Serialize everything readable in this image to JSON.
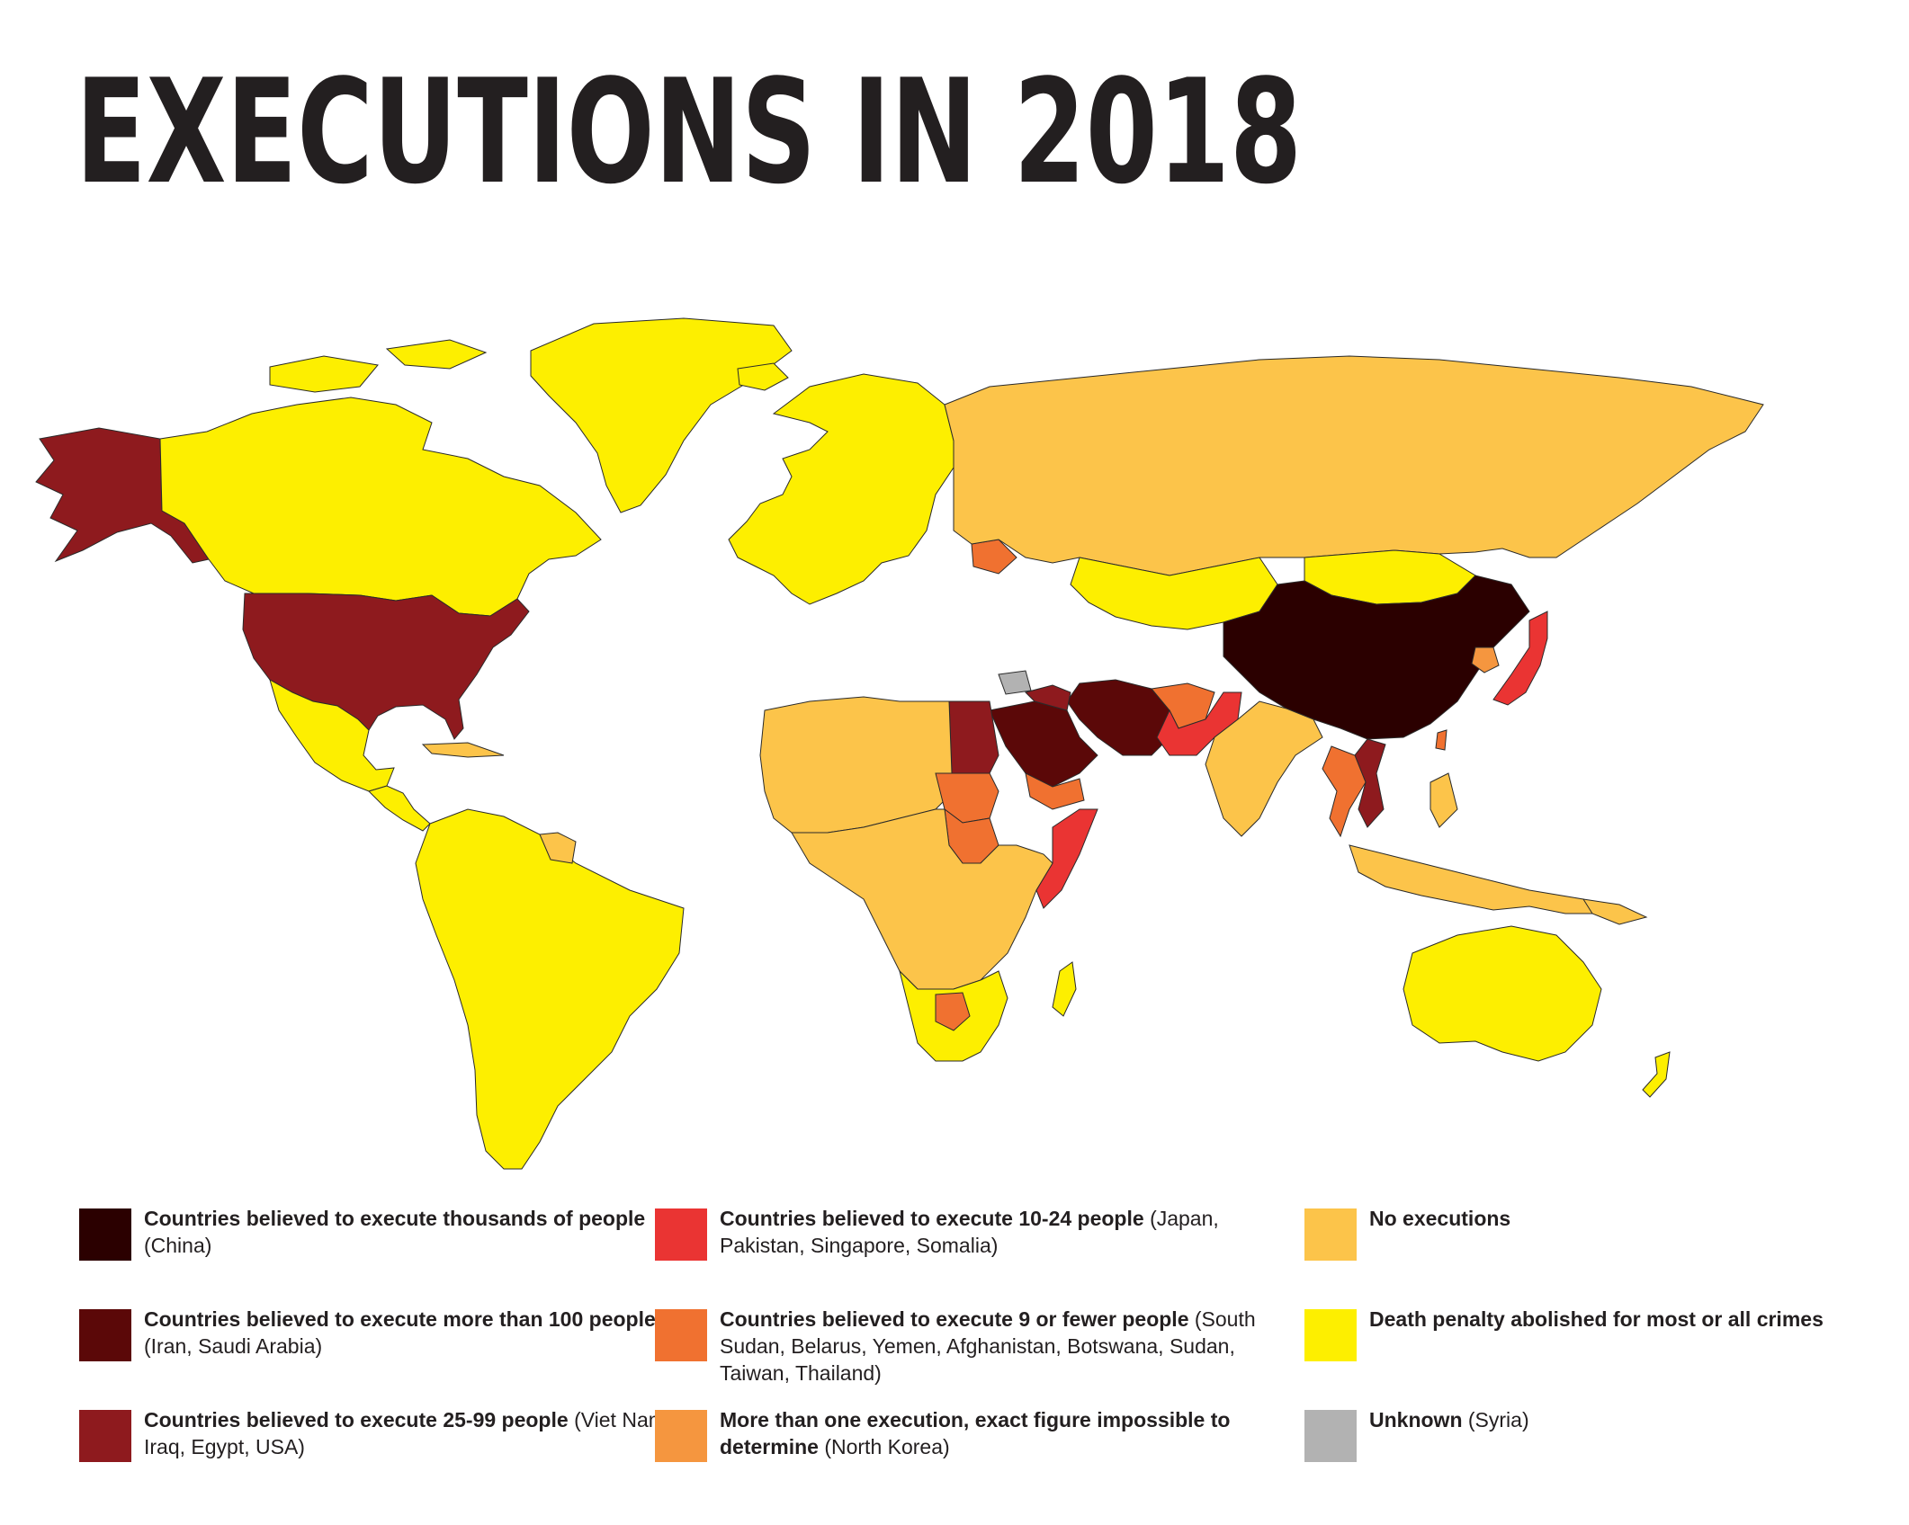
{
  "title": "EXECUTIONS IN 2018",
  "colors": {
    "thousands": "#2b0000",
    "over100": "#5b0808",
    "c25_99": "#8e1a1e",
    "c10_24": "#ea3433",
    "c9_fewer": "#f07130",
    "more_than_one": "#f5963f",
    "no_exec": "#fcc44a",
    "abolished": "#fdef00",
    "unknown": "#b2b2b2",
    "border": "#2a2a2a"
  },
  "legend": [
    {
      "bold": "Countries believed to execute thousands of people",
      "examples": "(China)",
      "color_key": "thousands"
    },
    {
      "bold": "Countries believed to execute more than 100 people",
      "examples": "(Iran, Saudi Arabia)",
      "color_key": "over100"
    },
    {
      "bold": "Countries believed to execute 25-99 people",
      "examples": "(Viet Nam, Iraq, Egypt, USA)",
      "color_key": "c25_99"
    },
    {
      "bold": "Countries believed to execute 10-24 people",
      "examples": "(Japan, Pakistan, Singapore, Somalia)",
      "color_key": "c10_24"
    },
    {
      "bold": "Countries believed to execute 9 or fewer people",
      "examples": "(South Sudan, Belarus, Yemen, Afghanistan, Botswana, Sudan, Taiwan, Thailand)",
      "color_key": "c9_fewer"
    },
    {
      "bold": "More than one execution, exact figure impossible to determine",
      "examples": "(North Korea)",
      "color_key": "more_than_one"
    },
    {
      "bold": "No executions",
      "examples": "",
      "color_key": "no_exec"
    },
    {
      "bold": "Death penalty abolished for most or all crimes",
      "examples": "",
      "color_key": "abolished"
    },
    {
      "bold": "Unknown",
      "examples": "(Syria)",
      "color_key": "unknown"
    }
  ],
  "regions": [
    {
      "name": "Alaska",
      "category": "c25_99"
    },
    {
      "name": "Canada",
      "category": "abolished"
    },
    {
      "name": "Greenland",
      "category": "abolished"
    },
    {
      "name": "USA",
      "category": "c25_99"
    },
    {
      "name": "Mexico",
      "category": "abolished"
    },
    {
      "name": "Cuba",
      "category": "no_exec"
    },
    {
      "name": "Central America",
      "category": "abolished"
    },
    {
      "name": "South America",
      "category": "abolished"
    },
    {
      "name": "Guyana",
      "category": "no_exec"
    },
    {
      "name": "Iceland",
      "category": "abolished"
    },
    {
      "name": "Europe",
      "category": "abolished"
    },
    {
      "name": "Belarus",
      "category": "c9_fewer"
    },
    {
      "name": "Russia",
      "category": "no_exec"
    },
    {
      "name": "Kazakhstan",
      "category": "abolished"
    },
    {
      "name": "Mongolia",
      "category": "abolished"
    },
    {
      "name": "China",
      "category": "thousands"
    },
    {
      "name": "North Korea",
      "category": "more_than_one"
    },
    {
      "name": "Japan",
      "category": "c10_24"
    },
    {
      "name": "Taiwan",
      "category": "c9_fewer"
    },
    {
      "name": "Iran",
      "category": "over100"
    },
    {
      "name": "Saudi Arabia",
      "category": "over100"
    },
    {
      "name": "Iraq",
      "category": "c25_99"
    },
    {
      "name": "Syria",
      "category": "unknown"
    },
    {
      "name": "Egypt",
      "category": "c25_99"
    },
    {
      "name": "Yemen",
      "category": "c9_fewer"
    },
    {
      "name": "Afghanistan",
      "category": "c9_fewer"
    },
    {
      "name": "Pakistan",
      "category": "c10_24"
    },
    {
      "name": "India",
      "category": "no_exec"
    },
    {
      "name": "Viet Nam",
      "category": "c25_99"
    },
    {
      "name": "Thailand",
      "category": "c9_fewer"
    },
    {
      "name": "Southeast Asia",
      "category": "no_exec"
    },
    {
      "name": "North Africa",
      "category": "no_exec"
    },
    {
      "name": "Sudan",
      "category": "c9_fewer"
    },
    {
      "name": "South Sudan",
      "category": "c9_fewer"
    },
    {
      "name": "Somalia",
      "category": "c10_24"
    },
    {
      "name": "Central Africa",
      "category": "no_exec"
    },
    {
      "name": "Southern Africa",
      "category": "abolished"
    },
    {
      "name": "Botswana",
      "category": "c9_fewer"
    },
    {
      "name": "Madagascar",
      "category": "abolished"
    },
    {
      "name": "Australia",
      "category": "abolished"
    },
    {
      "name": "New Zealand",
      "category": "abolished"
    },
    {
      "name": "Papua New Guinea",
      "category": "no_exec"
    }
  ]
}
